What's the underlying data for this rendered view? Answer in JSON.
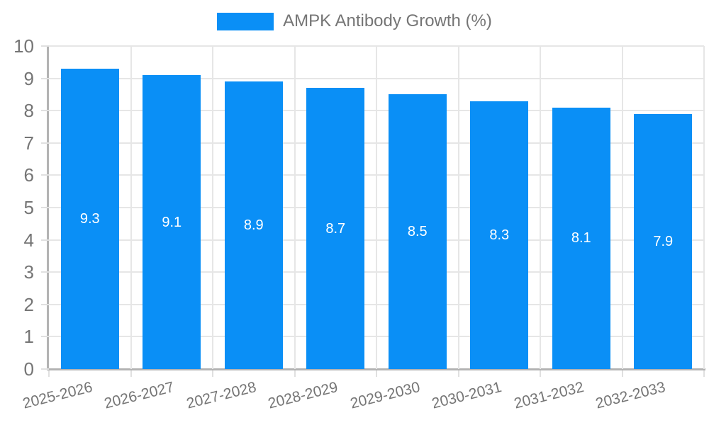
{
  "legend": {
    "label": "AMPK Antibody Growth (%)"
  },
  "colors": {
    "bar": "#0a8ff6",
    "grid": "#e6e6e6",
    "axis": "#b3b3b3",
    "tick": "#e0e0e0",
    "label_text": "#757575",
    "value_text": "#ffffff",
    "background": "#ffffff"
  },
  "chart_data": {
    "type": "bar",
    "title": "AMPK Antibody Growth (%)",
    "categories": [
      "2025-2026",
      "2026-2027",
      "2027-2028",
      "2028-2029",
      "2029-2030",
      "2030-2031",
      "2031-2032",
      "2032-2033"
    ],
    "values": [
      9.3,
      9.1,
      8.9,
      8.7,
      8.5,
      8.3,
      8.1,
      7.9
    ],
    "value_labels": [
      "9.3",
      "9.1",
      "8.9",
      "8.7",
      "8.5",
      "8.3",
      "8.1",
      "7.9"
    ],
    "xlabel": "",
    "ylabel": "",
    "ylim": [
      0,
      10
    ],
    "yticks": [
      0,
      1,
      2,
      3,
      4,
      5,
      6,
      7,
      8,
      9,
      10
    ],
    "grid": true,
    "legend_position": "top-center",
    "bar_label_position": "inside-middle",
    "x_label_rotation_deg": -14
  }
}
